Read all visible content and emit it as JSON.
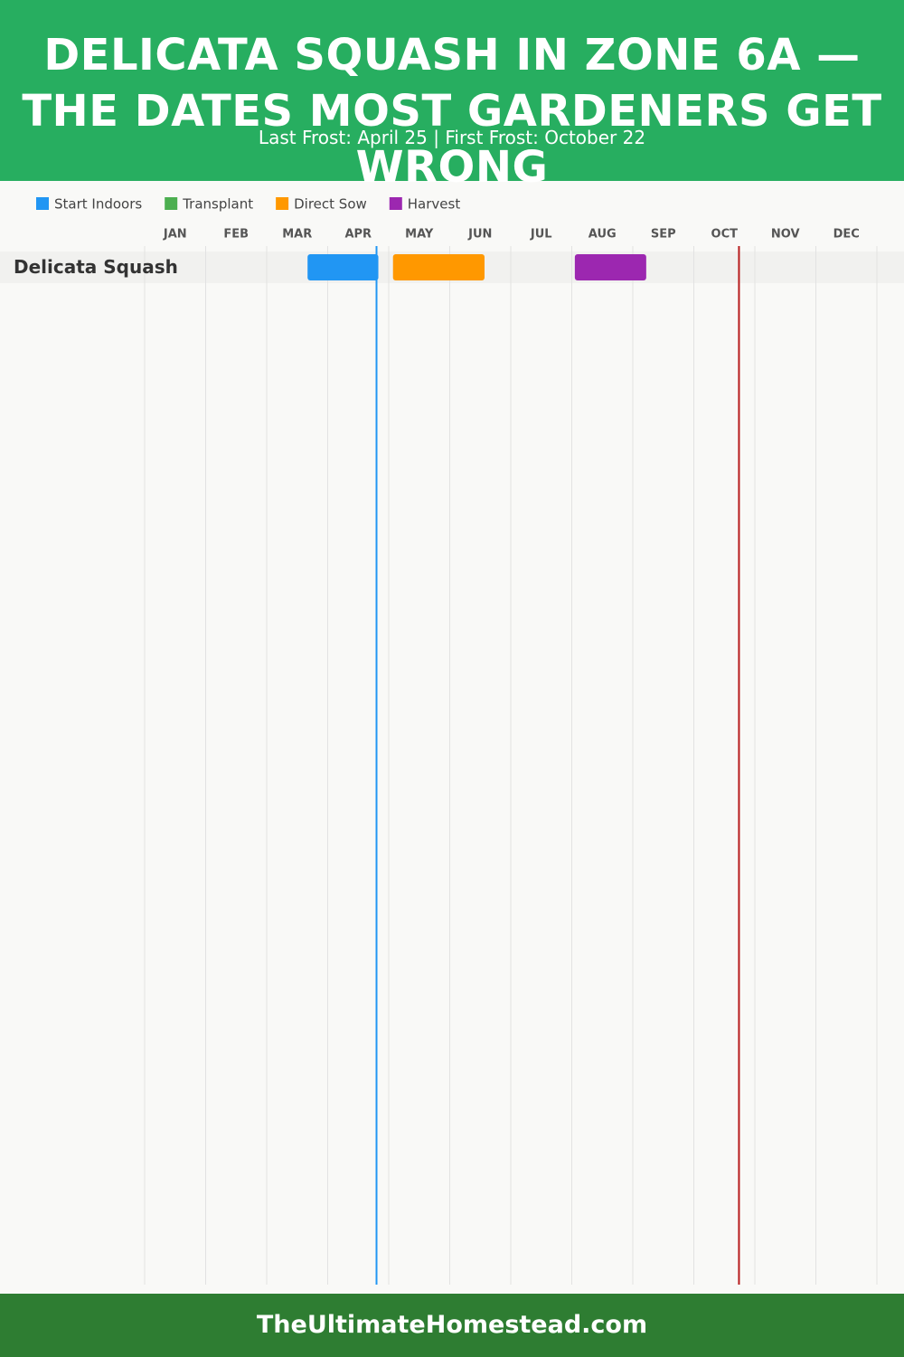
{
  "chart_data": {
    "type": "gantt",
    "title": "DELICATA SQUASH IN ZONE 6A — THE DATES MOST GARDENERS GET WRONG",
    "subtitle": "Last Frost: April 25 | First Frost: October 22",
    "months": [
      "JAN",
      "FEB",
      "MAR",
      "APR",
      "MAY",
      "JUN",
      "JUL",
      "AUG",
      "SEP",
      "OCT",
      "NOV",
      "DEC"
    ],
    "xlim": [
      0,
      12
    ],
    "categories": [
      "Delicata Squash"
    ],
    "series": [
      {
        "name": "Start Indoors",
        "color": "#2196f3",
        "values": [
          [
            2.67,
            3.83
          ]
        ]
      },
      {
        "name": "Transplant",
        "color": "#4caf50",
        "values": [
          null
        ]
      },
      {
        "name": "Direct Sow",
        "color": "#ff9800",
        "values": [
          [
            4.07,
            5.57
          ]
        ]
      },
      {
        "name": "Harvest",
        "color": "#9c27b0",
        "values": [
          [
            7.05,
            8.22
          ]
        ]
      }
    ],
    "frost_lines": [
      {
        "value": 3.8,
        "color": "#2196f3"
      },
      {
        "value": 9.74,
        "color": "#b71c1c"
      }
    ],
    "grid": true
  },
  "footer": "TheUltimateHomestead.com"
}
